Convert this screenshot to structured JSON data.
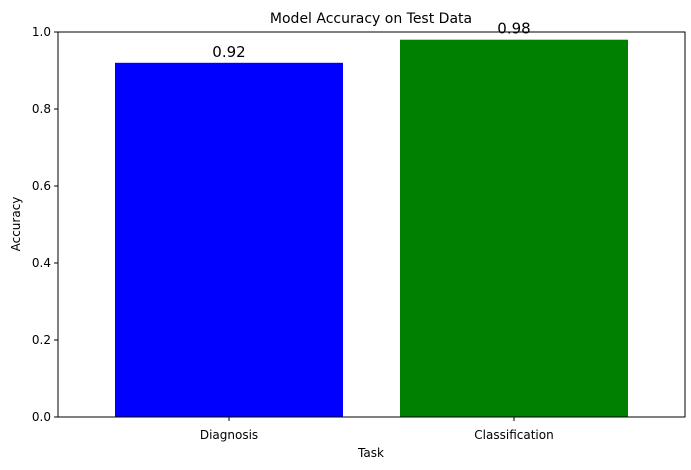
{
  "chart_data": {
    "type": "bar",
    "title": "Model Accuracy on Test Data",
    "xlabel": "Task",
    "ylabel": "Accuracy",
    "categories": [
      "Diagnosis",
      "Classification"
    ],
    "values": [
      0.92,
      0.98
    ],
    "data_labels": [
      "0.92",
      "0.98"
    ],
    "colors": [
      "#0000ff",
      "#008000"
    ],
    "ylim": [
      0,
      1.0
    ],
    "yticks": [
      0.0,
      0.2,
      0.4,
      0.6,
      0.8,
      1.0
    ],
    "ytick_labels": [
      "0.0",
      "0.2",
      "0.4",
      "0.6",
      "0.8",
      "1.0"
    ],
    "grid": false,
    "legend": "none"
  }
}
